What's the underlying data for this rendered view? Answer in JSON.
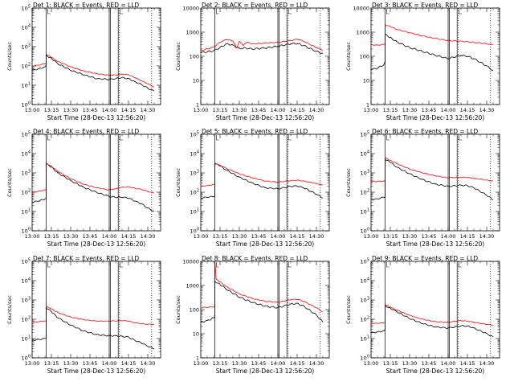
{
  "figure": {
    "xlabel": "Start Time (28-Dec-13 12:56:20)",
    "ylabel": "Counts/sec",
    "x_ticks": [
      "13:00",
      "13:15",
      "13:30",
      "13:45",
      "14:00",
      "14:15",
      "14:30"
    ],
    "x_tick_minutes": [
      0,
      15,
      30,
      45,
      60,
      75,
      90
    ],
    "x_range_minutes_after_1300": [
      0,
      100
    ],
    "colors": {
      "events": "#000000",
      "lld": "#ff0000",
      "axes": "#000000"
    },
    "y_scale": "log",
    "grid": false
  },
  "chart_data": [
    {
      "type": "line",
      "title": "Det 1: BLACK = Events, RED = LLD",
      "ylabel": "Counts/sec",
      "xlabel": "Start Time (28-Dec-13 12:56:20)",
      "y_ticks": [
        "10^0",
        "10^1",
        "10^2",
        "10^3",
        "10^4",
        "10^5"
      ],
      "ylim": [
        1,
        100000
      ],
      "xlim": [
        "13:00",
        "14:40"
      ],
      "markers": [
        "13:11",
        "14:00",
        "14:01",
        "14:07"
      ],
      "dotted_markers": [
        "14:08",
        "14:33"
      ],
      "series": [
        {
          "name": "Events",
          "x": [
            "13:00",
            "13:05",
            "13:10",
            "13:11",
            "13:11",
            "13:15",
            "13:20",
            "13:30",
            "13:40",
            "13:50",
            "14:00",
            "14:05",
            "14:10",
            "14:15",
            "14:20",
            "14:25",
            "14:30",
            "14:35"
          ],
          "values": [
            60,
            70,
            90,
            100,
            350,
            250,
            130,
            60,
            35,
            22,
            20,
            22,
            25,
            22,
            15,
            11,
            7,
            5
          ]
        },
        {
          "name": "LLD",
          "x": [
            "13:00",
            "13:05",
            "13:10",
            "13:11",
            "13:11",
            "13:15",
            "13:20",
            "13:30",
            "13:40",
            "13:50",
            "14:00",
            "14:05",
            "14:10",
            "14:15",
            "14:20",
            "14:25",
            "14:30",
            "14:35"
          ],
          "values": [
            100,
            110,
            130,
            140,
            380,
            280,
            170,
            90,
            55,
            40,
            33,
            34,
            38,
            35,
            25,
            17,
            12,
            8
          ]
        }
      ]
    },
    {
      "type": "line",
      "title": "Det 2: BLACK = Events, RED = LLD",
      "ylabel": "Counts/sec",
      "xlabel": "Start Time (28-Dec-13 12:56:20)",
      "y_ticks": [
        "1",
        "10",
        "100",
        "1000",
        "10000"
      ],
      "ylim": [
        1,
        10000
      ],
      "xlim": [
        "13:00",
        "14:40"
      ],
      "markers": [
        "13:11",
        "14:00",
        "14:01",
        "14:07"
      ],
      "dotted_markers": [
        "14:08",
        "14:33"
      ],
      "series": [
        {
          "name": "Events",
          "x": [
            "13:00",
            "13:10",
            "13:15",
            "13:20",
            "13:25",
            "13:30",
            "13:35",
            "13:40",
            "13:50",
            "14:00",
            "14:10",
            "14:15",
            "14:20",
            "14:30",
            "14:35"
          ],
          "values": [
            140,
            170,
            230,
            330,
            290,
            210,
            220,
            200,
            220,
            260,
            330,
            340,
            280,
            160,
            130
          ]
        },
        {
          "name": "LLD",
          "x": [
            "13:00",
            "13:10",
            "13:15",
            "13:20",
            "13:25",
            "13:28",
            "13:30",
            "13:33",
            "13:36",
            "13:40",
            "13:50",
            "14:00",
            "14:10",
            "14:15",
            "14:20",
            "14:30",
            "14:35"
          ],
          "values": [
            170,
            240,
            380,
            500,
            430,
            220,
            420,
            280,
            380,
            330,
            350,
            380,
            450,
            520,
            420,
            230,
            180
          ]
        }
      ]
    },
    {
      "type": "line",
      "title": "Det 3: BLACK = Events, RED = LLD",
      "ylabel": "Counts/sec",
      "xlabel": "Start Time (28-Dec-13 12:56:20)",
      "y_ticks": [
        "1",
        "10",
        "100",
        "1000",
        "10000"
      ],
      "ylim": [
        1,
        10000
      ],
      "xlim": [
        "13:00",
        "14:40"
      ],
      "markers": [
        "13:11",
        "14:00",
        "14:01",
        "14:07"
      ],
      "dotted_markers": [
        "14:08",
        "14:33"
      ],
      "series": [
        {
          "name": "Events",
          "x": [
            "13:00",
            "13:05",
            "13:10",
            "13:11",
            "13:11",
            "13:15",
            "13:20",
            "13:30",
            "13:40",
            "13:50",
            "14:00",
            "14:10",
            "14:15",
            "14:20",
            "14:30",
            "14:35"
          ],
          "values": [
            28,
            32,
            45,
            60,
            800,
            600,
            400,
            230,
            160,
            110,
            80,
            110,
            100,
            80,
            40,
            25
          ]
        },
        {
          "name": "LLD",
          "x": [
            "13:00",
            "13:05",
            "13:10",
            "13:11",
            "13:11",
            "13:15",
            "13:20",
            "13:30",
            "13:40",
            "13:50",
            "14:00",
            "14:10",
            "14:15",
            "14:20",
            "14:30",
            "14:35"
          ],
          "values": [
            300,
            290,
            310,
            320,
            2000,
            1700,
            1300,
            950,
            700,
            550,
            450,
            420,
            400,
            380,
            330,
            300
          ]
        }
      ]
    },
    {
      "type": "line",
      "title": "Det 4: BLACK = Events, RED = LLD",
      "ylabel": "Counts/sec",
      "xlabel": "Start Time (28-Dec-13 12:56:20)",
      "y_ticks": [
        "10^0",
        "10^1",
        "10^2",
        "10^3",
        "10^4",
        "10^5"
      ],
      "ylim": [
        1,
        100000
      ],
      "xlim": [
        "13:00",
        "14:40"
      ],
      "markers": [
        "13:11",
        "14:00",
        "14:01",
        "14:07"
      ],
      "dotted_markers": [
        "14:08",
        "14:33"
      ],
      "series": [
        {
          "name": "Events",
          "x": [
            "13:00",
            "13:05",
            "13:10",
            "13:11",
            "13:11",
            "13:15",
            "13:20",
            "13:30",
            "13:40",
            "13:50",
            "14:00",
            "14:05",
            "14:10",
            "14:15",
            "14:20",
            "14:25",
            "14:30",
            "14:35"
          ],
          "values": [
            30,
            35,
            45,
            50,
            3000,
            2000,
            1000,
            400,
            180,
            100,
            60,
            55,
            55,
            50,
            35,
            25,
            15,
            10
          ]
        },
        {
          "name": "LLD",
          "x": [
            "13:00",
            "13:05",
            "13:10",
            "13:11",
            "13:11",
            "13:15",
            "13:20",
            "13:30",
            "13:40",
            "13:50",
            "14:00",
            "14:05",
            "14:10",
            "14:15",
            "14:20",
            "14:25",
            "14:30",
            "14:35"
          ],
          "values": [
            100,
            110,
            130,
            140,
            3200,
            2200,
            1200,
            500,
            260,
            170,
            130,
            150,
            180,
            190,
            160,
            140,
            110,
            90
          ]
        }
      ]
    },
    {
      "type": "line",
      "title": "Det 5: BLACK = Events, RED = LLD",
      "ylabel": "Counts/sec",
      "xlabel": "Start Time (28-Dec-13 12:56:20)",
      "y_ticks": [
        "10^0",
        "10^1",
        "10^2",
        "10^3",
        "10^4",
        "10^5"
      ],
      "ylim": [
        1,
        100000
      ],
      "xlim": [
        "13:00",
        "14:40"
      ],
      "markers": [
        "13:11",
        "14:00",
        "14:01",
        "14:07"
      ],
      "dotted_markers": [
        "14:08",
        "14:33"
      ],
      "series": [
        {
          "name": "Events",
          "x": [
            "13:00",
            "13:05",
            "13:10",
            "13:11",
            "13:11",
            "13:15",
            "13:20",
            "13:30",
            "13:40",
            "13:50",
            "14:00",
            "14:10",
            "14:15",
            "14:20",
            "14:30",
            "14:35"
          ],
          "values": [
            50,
            55,
            60,
            65,
            3000,
            2300,
            1400,
            600,
            300,
            170,
            150,
            200,
            210,
            170,
            80,
            50
          ]
        },
        {
          "name": "LLD",
          "x": [
            "13:00",
            "13:05",
            "13:10",
            "13:11",
            "13:11",
            "13:15",
            "13:20",
            "13:30",
            "13:40",
            "13:50",
            "14:00",
            "14:10",
            "14:15",
            "14:20",
            "14:30",
            "14:35"
          ],
          "values": [
            200,
            220,
            250,
            260,
            3200,
            2500,
            1700,
            900,
            550,
            380,
            330,
            400,
            420,
            380,
            280,
            230
          ]
        }
      ]
    },
    {
      "type": "line",
      "title": "Det 6: BLACK = Events, RED = LLD",
      "ylabel": "Counts/sec",
      "xlabel": "Start Time (28-Dec-13 12:56:20)",
      "y_ticks": [
        "10^0",
        "10^1",
        "10^2",
        "10^3",
        "10^4",
        "10^5"
      ],
      "ylim": [
        1,
        100000
      ],
      "xlim": [
        "13:00",
        "14:40"
      ],
      "markers": [
        "13:11",
        "14:00",
        "14:01",
        "14:07"
      ],
      "dotted_markers": [
        "14:08",
        "14:33"
      ],
      "series": [
        {
          "name": "Events",
          "x": [
            "13:00",
            "13:05",
            "13:10",
            "13:11",
            "13:11",
            "13:15",
            "13:20",
            "13:30",
            "13:40",
            "13:50",
            "14:00",
            "14:10",
            "14:15",
            "14:20",
            "14:30",
            "14:35"
          ],
          "values": [
            40,
            45,
            55,
            60,
            5000,
            3500,
            2000,
            900,
            450,
            260,
            200,
            230,
            220,
            170,
            70,
            40
          ]
        },
        {
          "name": "LLD",
          "x": [
            "13:00",
            "13:05",
            "13:10",
            "13:11",
            "13:11",
            "13:15",
            "13:20",
            "13:30",
            "13:40",
            "13:50",
            "14:00",
            "14:10",
            "14:15",
            "14:20",
            "14:30",
            "14:35"
          ],
          "values": [
            350,
            360,
            380,
            400,
            6000,
            4500,
            3000,
            1600,
            1000,
            700,
            560,
            600,
            580,
            520,
            420,
            380
          ]
        }
      ]
    },
    {
      "type": "line",
      "title": "Det 7: BLACK = Events, RED = LLD",
      "ylabel": "Counts/sec",
      "xlabel": "Start Time (28-Dec-13 12:56:20)",
      "y_ticks": [
        "10^0",
        "10^1",
        "10^2",
        "10^3",
        "10^4",
        "10^5"
      ],
      "ylim": [
        1,
        100000
      ],
      "xlim": [
        "13:00",
        "14:40"
      ],
      "markers": [
        "13:11",
        "14:00",
        "14:01",
        "14:07"
      ],
      "dotted_markers": [
        "14:08",
        "14:33"
      ],
      "series": [
        {
          "name": "Events",
          "x": [
            "13:00",
            "13:05",
            "13:10",
            "13:11",
            "13:11",
            "13:15",
            "13:20",
            "13:30",
            "13:40",
            "13:50",
            "14:00",
            "14:05",
            "14:10",
            "14:15",
            "14:20",
            "14:25",
            "14:30",
            "14:35"
          ],
          "values": [
            8,
            9,
            10,
            11,
            400,
            250,
            120,
            50,
            25,
            16,
            14,
            14,
            13,
            12,
            8,
            6,
            4,
            3
          ]
        },
        {
          "name": "LLD",
          "x": [
            "13:00",
            "13:05",
            "13:10",
            "13:11",
            "13:11",
            "13:15",
            "13:20",
            "13:30",
            "13:40",
            "13:50",
            "14:00",
            "14:10",
            "14:15",
            "14:20",
            "14:30",
            "14:35"
          ],
          "values": [
            70,
            75,
            80,
            85,
            450,
            350,
            220,
            130,
            95,
            80,
            80,
            85,
            80,
            65,
            55,
            55
          ]
        }
      ]
    },
    {
      "type": "line",
      "title": "Det 8: BLACK = Events, RED = LLD",
      "ylabel": "Counts/sec",
      "xlabel": "Start Time (28-Dec-13 12:56:20)",
      "y_ticks": [
        "1",
        "10",
        "100",
        "1000",
        "10000"
      ],
      "ylim": [
        1,
        10000
      ],
      "xlim": [
        "13:00",
        "14:40"
      ],
      "markers": [
        "13:11",
        "14:00",
        "14:01",
        "14:07"
      ],
      "dotted_markers": [
        "14:08",
        "14:33"
      ],
      "series": [
        {
          "name": "Events",
          "x": [
            "13:00",
            "13:05",
            "13:10",
            "13:11",
            "13:11",
            "13:15",
            "13:20",
            "13:30",
            "13:40",
            "13:50",
            "14:00",
            "14:10",
            "14:15",
            "14:20",
            "14:30",
            "14:35"
          ],
          "values": [
            30,
            35,
            45,
            50,
            1500,
            1100,
            700,
            330,
            200,
            140,
            120,
            170,
            180,
            140,
            60,
            30
          ]
        },
        {
          "name": "LLD",
          "x": [
            "13:00",
            "13:05",
            "13:10",
            "13:11",
            "13:11",
            "13:12",
            "13:15",
            "13:20",
            "13:30",
            "13:40",
            "13:50",
            "14:00",
            "14:10",
            "14:15",
            "14:20",
            "14:30",
            "14:35"
          ],
          "values": [
            120,
            125,
            130,
            140,
            10000,
            1800,
            1400,
            900,
            450,
            290,
            220,
            200,
            260,
            270,
            220,
            120,
            80
          ]
        }
      ]
    },
    {
      "type": "line",
      "title": "Det 9: BLACK = Events, RED = LLD",
      "ylabel": "Counts/sec",
      "xlabel": "Start Time (28-Dec-13 12:56:20)",
      "y_ticks": [
        "10^0",
        "10^1",
        "10^2",
        "10^3",
        "10^4",
        "10^5"
      ],
      "ylim": [
        1,
        100000
      ],
      "xlim": [
        "13:00",
        "14:40"
      ],
      "markers": [
        "13:11",
        "14:00",
        "14:01",
        "14:07"
      ],
      "dotted_markers": [
        "14:08",
        "14:33"
      ],
      "series": [
        {
          "name": "Events",
          "x": [
            "13:00",
            "13:05",
            "13:10",
            "13:11",
            "13:11",
            "13:15",
            "13:20",
            "13:30",
            "13:40",
            "13:50",
            "14:00",
            "14:10",
            "14:15",
            "14:20",
            "14:30",
            "14:35"
          ],
          "values": [
            20,
            22,
            25,
            28,
            500,
            380,
            250,
            110,
            60,
            40,
            35,
            45,
            45,
            35,
            18,
            12
          ]
        },
        {
          "name": "LLD",
          "x": [
            "13:00",
            "13:05",
            "13:10",
            "13:11",
            "13:11",
            "13:15",
            "13:20",
            "13:30",
            "13:40",
            "13:50",
            "14:00",
            "14:10",
            "14:15",
            "14:20",
            "14:30",
            "14:35"
          ],
          "values": [
            60,
            62,
            65,
            70,
            550,
            420,
            300,
            160,
            100,
            75,
            70,
            85,
            80,
            70,
            55,
            50
          ]
        }
      ]
    }
  ]
}
